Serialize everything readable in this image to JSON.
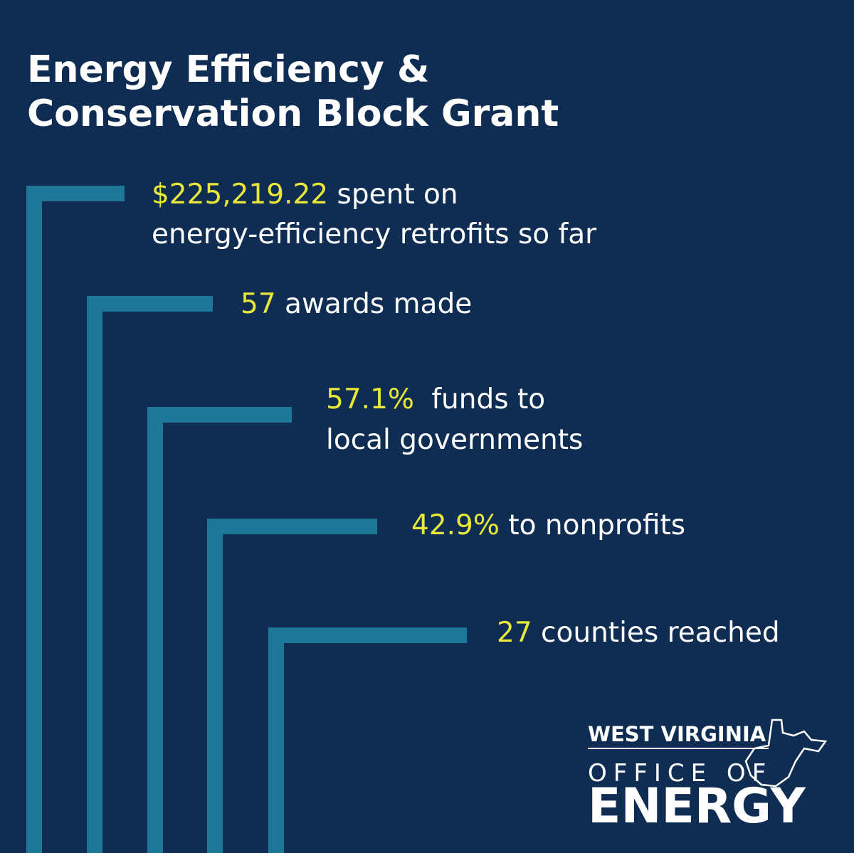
{
  "title": {
    "line1": "Energy Efficiency &",
    "line2": "Conservation Block Grant"
  },
  "stats": [
    {
      "highlight": "$225,219.22",
      "text": [
        "spent on",
        "energy-efficiency retrofits so far"
      ]
    },
    {
      "highlight": "57",
      "text": [
        "awards made"
      ]
    },
    {
      "highlight": "57.1%",
      "text": [
        "funds to",
        "local governments"
      ]
    },
    {
      "highlight": "42.9%",
      "text": [
        "to nonprofits"
      ]
    },
    {
      "highlight": "27",
      "text": [
        "counties reached"
      ]
    }
  ],
  "logo": {
    "line1": "WEST VIRGINIA",
    "line2": "OFFICE OF",
    "line3": "ENERGY"
  }
}
